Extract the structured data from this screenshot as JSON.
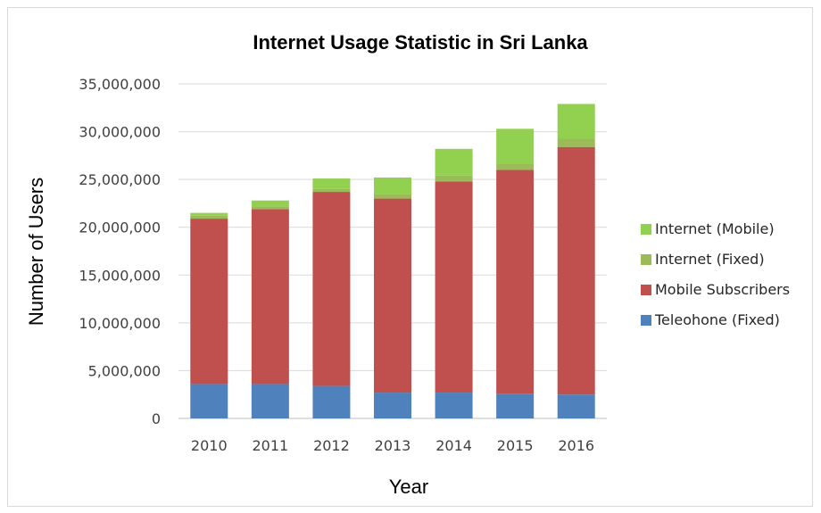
{
  "chart_data": {
    "type": "bar",
    "stacked": true,
    "title": "Internet Usage Statistic in Sri Lanka",
    "xlabel": "Year",
    "ylabel": "Number of  Users",
    "categories": [
      "2010",
      "2011",
      "2012",
      "2013",
      "2014",
      "2015",
      "2016"
    ],
    "ylim": [
      0,
      35000000
    ],
    "yticks": [
      0,
      5000000,
      10000000,
      15000000,
      20000000,
      25000000,
      30000000,
      35000000
    ],
    "ytick_labels": [
      "0",
      "5,000,000",
      "10,000,000",
      "15,000,000",
      "20,000,000",
      "25,000,000",
      "30,000,000",
      "35,000,000"
    ],
    "grid": true,
    "legend_position": "right",
    "series": [
      {
        "name": "Teleohone (Fixed)",
        "color": "#4f81bd",
        "values": [
          3600000,
          3600000,
          3400000,
          2700000,
          2700000,
          2600000,
          2500000
        ]
      },
      {
        "name": "Mobile Subscribers",
        "color": "#c0504d",
        "values": [
          17300000,
          18300000,
          20300000,
          20300000,
          22100000,
          23400000,
          25900000
        ]
      },
      {
        "name": "Internet (Fixed)",
        "color": "#9bbb59",
        "values": [
          300000,
          300000,
          300000,
          500000,
          600000,
          600000,
          900000
        ]
      },
      {
        "name": "Internet (Mobile)",
        "color": "#92d050",
        "values": [
          300000,
          600000,
          1100000,
          1700000,
          2800000,
          3700000,
          3600000
        ]
      }
    ]
  }
}
